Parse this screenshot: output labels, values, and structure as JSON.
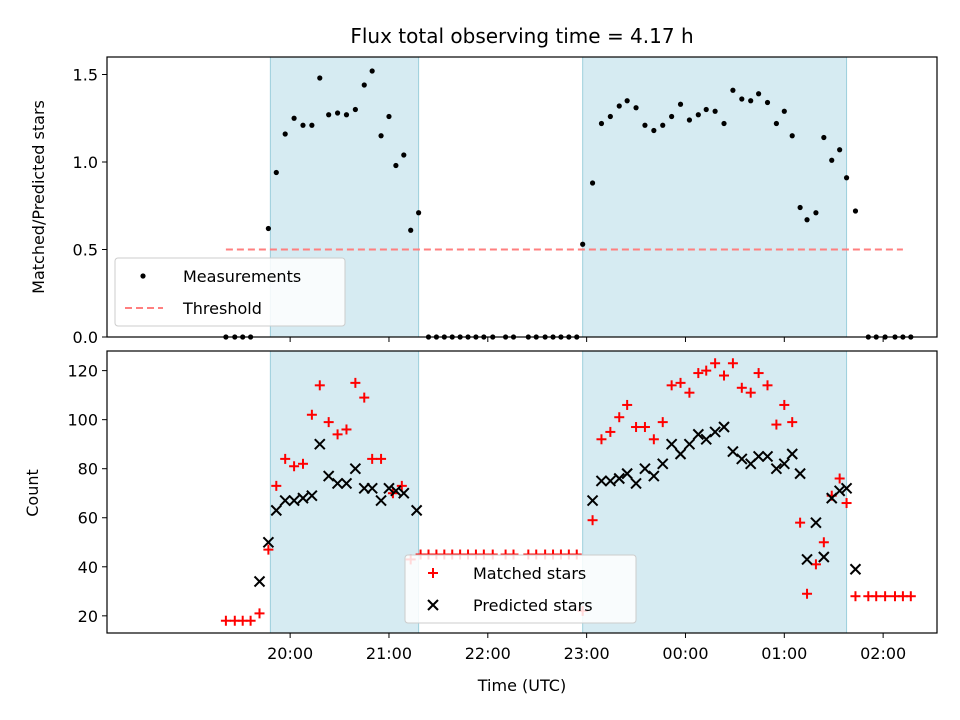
{
  "chart_data": [
    {
      "type": "scatter",
      "title": "Flux total observing time = 4.17 h",
      "ylabel": "Matched/Predicted stars",
      "ylim": [
        0,
        1.6
      ],
      "yticks": [
        "0.0",
        "0.5",
        "1.0",
        "1.5"
      ],
      "x_unit": "hours since 19:00 UTC",
      "shaded_spans": [
        [
          0.8,
          2.3
        ],
        [
          3.96,
          6.63
        ]
      ],
      "legend_placement": "lower-left",
      "legend": [
        "Measurements",
        "Threshold"
      ],
      "series": [
        {
          "name": "Measurements",
          "marker": "dot",
          "color": "#000000",
          "points": [
            [
              0.35,
              0
            ],
            [
              0.44,
              0
            ],
            [
              0.52,
              0
            ],
            [
              0.6,
              0
            ],
            [
              0.78,
              0.62
            ],
            [
              0.86,
              0.94
            ],
            [
              0.95,
              1.16
            ],
            [
              1.04,
              1.25
            ],
            [
              1.13,
              1.21
            ],
            [
              1.22,
              1.21
            ],
            [
              1.3,
              1.48
            ],
            [
              1.39,
              1.27
            ],
            [
              1.48,
              1.28
            ],
            [
              1.57,
              1.27
            ],
            [
              1.66,
              1.3
            ],
            [
              1.75,
              1.44
            ],
            [
              1.83,
              1.52
            ],
            [
              1.92,
              1.15
            ],
            [
              2.0,
              1.26
            ],
            [
              2.07,
              0.98
            ],
            [
              2.15,
              1.04
            ],
            [
              2.22,
              0.61
            ],
            [
              2.3,
              0.71
            ],
            [
              2.4,
              0
            ],
            [
              2.48,
              0
            ],
            [
              2.56,
              0
            ],
            [
              2.64,
              0
            ],
            [
              2.72,
              0
            ],
            [
              2.8,
              0
            ],
            [
              2.88,
              0
            ],
            [
              2.96,
              0
            ],
            [
              3.05,
              0
            ],
            [
              3.18,
              0
            ],
            [
              3.26,
              0
            ],
            [
              3.41,
              0
            ],
            [
              3.49,
              0
            ],
            [
              3.58,
              0
            ],
            [
              3.66,
              0
            ],
            [
              3.74,
              0
            ],
            [
              3.82,
              0
            ],
            [
              3.9,
              0
            ],
            [
              3.96,
              0.53
            ],
            [
              4.06,
              0.88
            ],
            [
              4.15,
              1.22
            ],
            [
              4.24,
              1.26
            ],
            [
              4.33,
              1.32
            ],
            [
              4.41,
              1.35
            ],
            [
              4.5,
              1.31
            ],
            [
              4.59,
              1.21
            ],
            [
              4.68,
              1.18
            ],
            [
              4.77,
              1.21
            ],
            [
              4.86,
              1.26
            ],
            [
              4.95,
              1.33
            ],
            [
              5.04,
              1.24
            ],
            [
              5.13,
              1.27
            ],
            [
              5.21,
              1.3
            ],
            [
              5.3,
              1.29
            ],
            [
              5.39,
              1.22
            ],
            [
              5.48,
              1.41
            ],
            [
              5.57,
              1.36
            ],
            [
              5.66,
              1.35
            ],
            [
              5.74,
              1.39
            ],
            [
              5.83,
              1.34
            ],
            [
              5.92,
              1.22
            ],
            [
              6.0,
              1.29
            ],
            [
              6.08,
              1.15
            ],
            [
              6.16,
              0.74
            ],
            [
              6.23,
              0.67
            ],
            [
              6.32,
              0.71
            ],
            [
              6.4,
              1.14
            ],
            [
              6.48,
              1.01
            ],
            [
              6.56,
              1.07
            ],
            [
              6.63,
              0.91
            ],
            [
              6.72,
              0.72
            ],
            [
              6.85,
              0
            ],
            [
              6.93,
              0
            ],
            [
              7.02,
              0
            ],
            [
              7.12,
              0
            ],
            [
              7.2,
              0
            ],
            [
              7.28,
              0
            ]
          ]
        },
        {
          "name": "Threshold",
          "style": "dashed",
          "color": "#ff7f7f",
          "points": [
            [
              0.35,
              0.5
            ],
            [
              7.2,
              0.5
            ]
          ]
        }
      ]
    },
    {
      "type": "scatter",
      "xlabel": "Time (UTC)",
      "ylabel": "Count",
      "ylim": [
        13,
        128
      ],
      "yticks": [
        "20",
        "40",
        "60",
        "80",
        "100",
        "120"
      ],
      "xticks": [
        "20:00",
        "21:00",
        "22:00",
        "23:00",
        "00:00",
        "01:00",
        "02:00"
      ],
      "shaded_spans": [
        [
          0.8,
          2.3
        ],
        [
          3.96,
          6.63
        ]
      ],
      "legend_placement": "lower-center",
      "legend": [
        "Matched stars",
        "Predicted stars"
      ],
      "series": [
        {
          "name": "Matched stars",
          "marker": "plus",
          "color": "#ff0000",
          "points": [
            [
              0.35,
              18
            ],
            [
              0.44,
              18
            ],
            [
              0.52,
              18
            ],
            [
              0.6,
              18
            ],
            [
              0.69,
              21
            ],
            [
              0.78,
              47
            ],
            [
              0.86,
              73
            ],
            [
              0.95,
              84
            ],
            [
              1.04,
              81
            ],
            [
              1.13,
              82
            ],
            [
              1.22,
              102
            ],
            [
              1.3,
              114
            ],
            [
              1.39,
              99
            ],
            [
              1.48,
              94
            ],
            [
              1.57,
              96
            ],
            [
              1.66,
              115
            ],
            [
              1.75,
              109
            ],
            [
              1.83,
              84
            ],
            [
              1.92,
              84
            ],
            [
              2.04,
              70
            ],
            [
              2.13,
              73
            ],
            [
              2.22,
              43
            ],
            [
              2.32,
              45
            ],
            [
              2.4,
              45
            ],
            [
              2.48,
              45
            ],
            [
              2.56,
              45
            ],
            [
              2.64,
              45
            ],
            [
              2.72,
              45
            ],
            [
              2.8,
              45
            ],
            [
              2.88,
              45
            ],
            [
              2.96,
              45
            ],
            [
              3.05,
              45
            ],
            [
              3.18,
              45
            ],
            [
              3.26,
              45
            ],
            [
              3.41,
              45
            ],
            [
              3.49,
              45
            ],
            [
              3.58,
              45
            ],
            [
              3.66,
              45
            ],
            [
              3.74,
              45
            ],
            [
              3.82,
              45
            ],
            [
              3.9,
              45
            ],
            [
              3.96,
              22
            ],
            [
              4.06,
              59
            ],
            [
              4.15,
              92
            ],
            [
              4.24,
              95
            ],
            [
              4.33,
              101
            ],
            [
              4.41,
              106
            ],
            [
              4.5,
              97
            ],
            [
              4.59,
              97
            ],
            [
              4.68,
              92
            ],
            [
              4.77,
              99
            ],
            [
              4.86,
              114
            ],
            [
              4.95,
              115
            ],
            [
              5.04,
              111
            ],
            [
              5.13,
              119
            ],
            [
              5.21,
              120
            ],
            [
              5.3,
              123
            ],
            [
              5.39,
              118
            ],
            [
              5.48,
              123
            ],
            [
              5.57,
              113
            ],
            [
              5.66,
              111
            ],
            [
              5.74,
              119
            ],
            [
              5.83,
              114
            ],
            [
              5.92,
              98
            ],
            [
              6.0,
              106
            ],
            [
              6.08,
              99
            ],
            [
              6.16,
              58
            ],
            [
              6.23,
              29
            ],
            [
              6.32,
              41
            ],
            [
              6.4,
              50
            ],
            [
              6.48,
              69
            ],
            [
              6.56,
              76
            ],
            [
              6.63,
              66
            ],
            [
              6.72,
              28
            ],
            [
              6.85,
              28
            ],
            [
              6.93,
              28
            ],
            [
              7.02,
              28
            ],
            [
              7.12,
              28
            ],
            [
              7.2,
              28
            ],
            [
              7.28,
              28
            ]
          ]
        },
        {
          "name": "Predicted stars",
          "marker": "x",
          "color": "#000000",
          "points": [
            [
              0.69,
              34
            ],
            [
              0.78,
              50
            ],
            [
              0.86,
              63
            ],
            [
              0.95,
              67
            ],
            [
              1.04,
              67
            ],
            [
              1.13,
              68
            ],
            [
              1.22,
              69
            ],
            [
              1.3,
              90
            ],
            [
              1.39,
              77
            ],
            [
              1.48,
              74
            ],
            [
              1.57,
              74
            ],
            [
              1.66,
              80
            ],
            [
              1.75,
              72
            ],
            [
              1.83,
              72
            ],
            [
              1.92,
              67
            ],
            [
              2.0,
              72
            ],
            [
              2.07,
              71
            ],
            [
              2.15,
              70
            ],
            [
              2.28,
              63
            ],
            [
              4.06,
              67
            ],
            [
              4.15,
              75
            ],
            [
              4.24,
              75
            ],
            [
              4.33,
              76
            ],
            [
              4.41,
              78
            ],
            [
              4.5,
              74
            ],
            [
              4.59,
              80
            ],
            [
              4.68,
              77
            ],
            [
              4.77,
              82
            ],
            [
              4.86,
              90
            ],
            [
              4.95,
              86
            ],
            [
              5.04,
              90
            ],
            [
              5.13,
              94
            ],
            [
              5.21,
              92
            ],
            [
              5.3,
              95
            ],
            [
              5.39,
              97
            ],
            [
              5.48,
              87
            ],
            [
              5.57,
              84
            ],
            [
              5.66,
              82
            ],
            [
              5.74,
              85
            ],
            [
              5.83,
              85
            ],
            [
              5.92,
              80
            ],
            [
              6.0,
              82
            ],
            [
              6.08,
              86
            ],
            [
              6.16,
              78
            ],
            [
              6.23,
              43
            ],
            [
              6.32,
              58
            ],
            [
              6.4,
              44
            ],
            [
              6.48,
              68
            ],
            [
              6.56,
              71
            ],
            [
              6.63,
              72
            ],
            [
              6.72,
              39
            ]
          ]
        }
      ]
    }
  ]
}
